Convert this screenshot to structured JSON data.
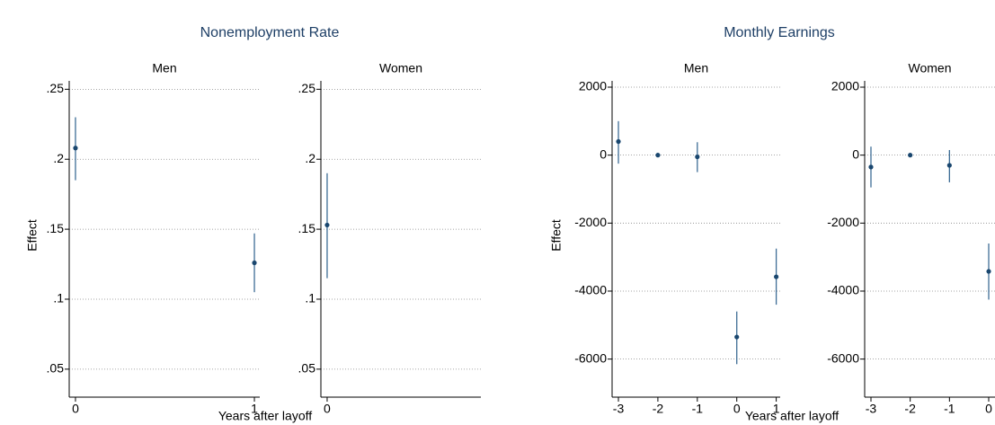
{
  "chart_data": [
    {
      "type": "scatter",
      "title": "Nonemployment Rate",
      "ylabel": "Effect",
      "xlabel": "Years after layoff",
      "color": "#1a476f",
      "grid": true,
      "ylim": [
        0.03,
        0.256
      ],
      "yticks": [
        {
          "value": 0.05,
          "label": ".05"
        },
        {
          "value": 0.1,
          "label": ".1"
        },
        {
          "value": 0.15,
          "label": ".15"
        },
        {
          "value": 0.2,
          "label": ".2"
        },
        {
          "value": 0.25,
          "label": ".25"
        }
      ],
      "panels": [
        {
          "subtitle": "Men",
          "xlim": [
            -0.035,
            1.03
          ],
          "xticks": [
            0,
            1
          ],
          "x": [
            0,
            1
          ],
          "values": [
            0.208,
            0.126
          ],
          "ci_low": [
            0.185,
            0.105
          ],
          "ci_high": [
            0.23,
            0.147
          ]
        },
        {
          "subtitle": "Women",
          "xlim": [
            -0.035,
            0.86
          ],
          "xticks": [
            0
          ],
          "x": [
            0
          ],
          "values": [
            0.153
          ],
          "ci_low": [
            0.115
          ],
          "ci_high": [
            0.19
          ]
        }
      ]
    },
    {
      "type": "scatter",
      "title": "Monthly Earnings",
      "ylabel": "Effect",
      "xlabel": "Years after layoff",
      "color": "#1a476f",
      "grid": true,
      "ylim": [
        -7120,
        2185
      ],
      "yticks": [
        -6000,
        -4000,
        -2000,
        0,
        2000
      ],
      "panels": [
        {
          "subtitle": "Men",
          "xlim": [
            -3.16,
            1.1
          ],
          "xticks": [
            -3,
            -2,
            -1,
            0,
            1
          ],
          "x": [
            -3,
            -2,
            -1,
            0,
            1
          ],
          "values": [
            400,
            0,
            -50,
            -5350,
            -3580
          ],
          "ci_low": [
            -250,
            null,
            -500,
            -6150,
            -4400
          ],
          "ci_high": [
            1000,
            null,
            380,
            -4600,
            -2750
          ]
        },
        {
          "subtitle": "Women",
          "xlim": [
            -3.16,
            0.16
          ],
          "xticks": [
            -3,
            -2,
            -1,
            0
          ],
          "x": [
            -3,
            -2,
            -1,
            0
          ],
          "values": [
            -350,
            0,
            -300,
            -3420
          ],
          "ci_low": [
            -950,
            null,
            -800,
            -4250
          ],
          "ci_high": [
            250,
            null,
            150,
            -2600
          ]
        }
      ]
    }
  ]
}
